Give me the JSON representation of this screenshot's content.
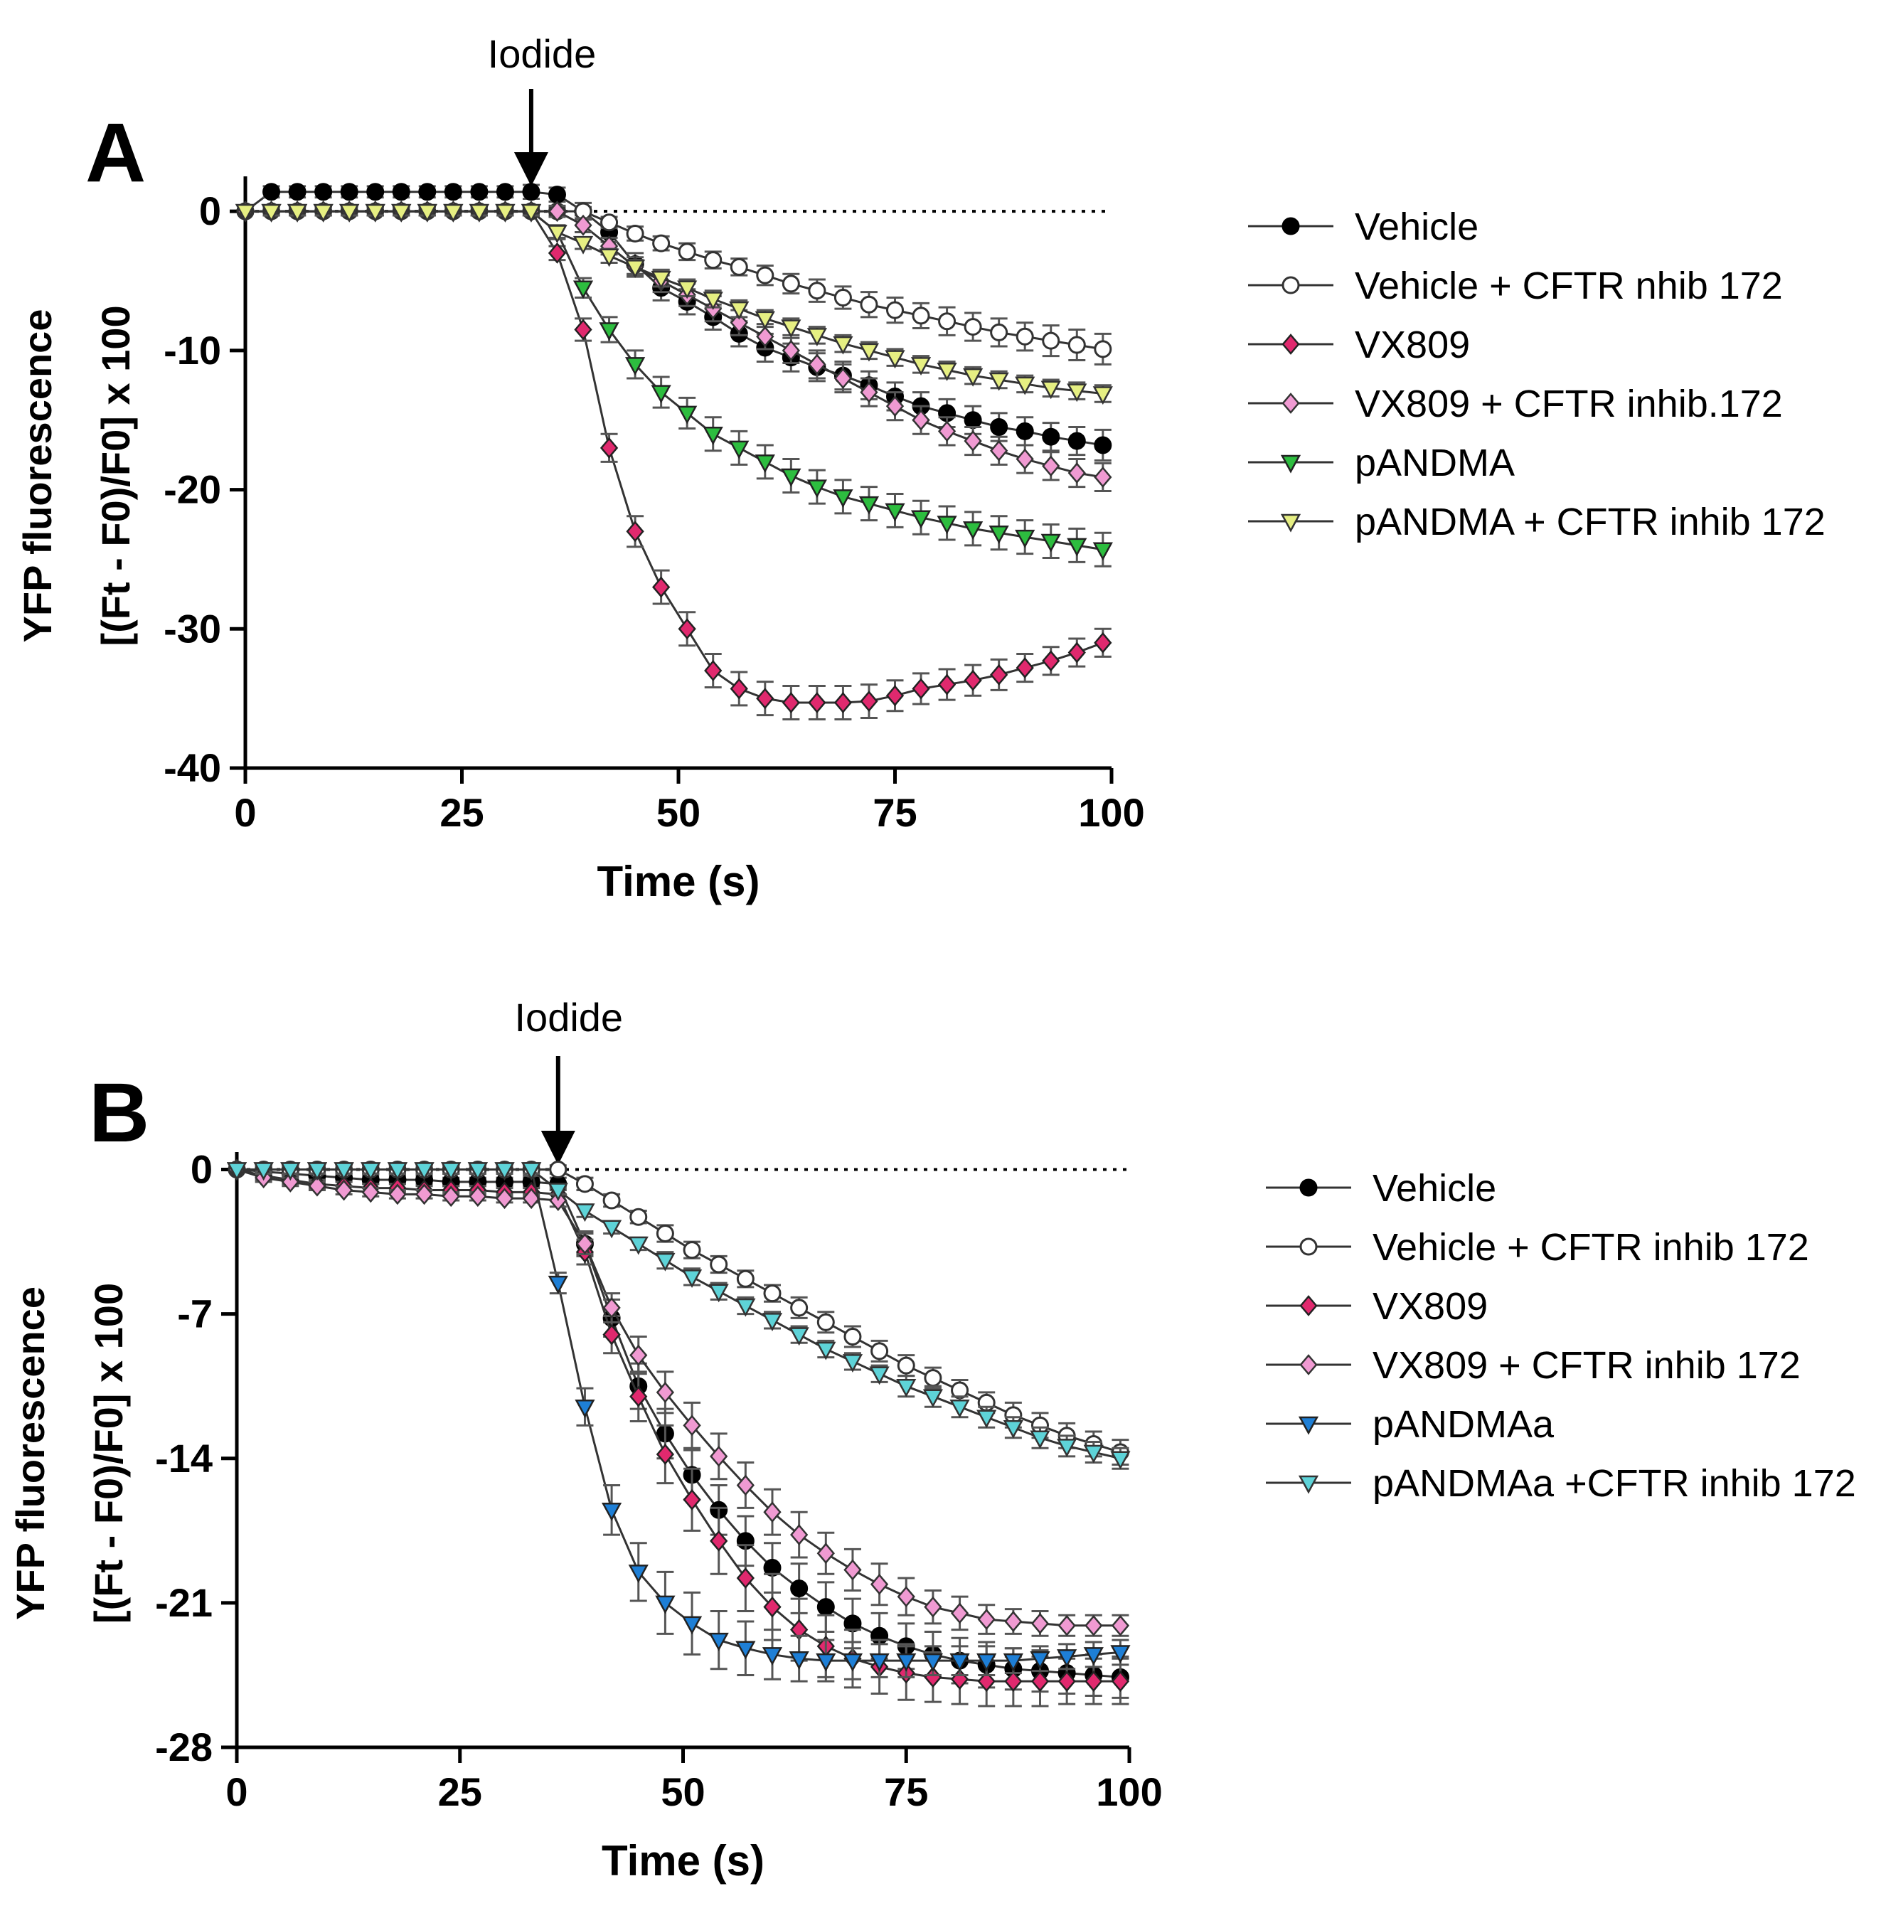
{
  "chart_data": [
    {
      "type": "line",
      "panel_label": "A",
      "annotation": "Iodide",
      "annotation_x": 33,
      "xlabel": "Time (s)",
      "ylabel_lines": [
        "YFP fluorescence",
        "[(Ft - F0)/F0] x 100"
      ],
      "xlim": [
        0,
        100
      ],
      "ylim": [
        -40,
        2
      ],
      "xticks": [
        0,
        25,
        50,
        75,
        100
      ],
      "xtick_labels": [
        "0",
        "25",
        "50",
        "75",
        "100"
      ],
      "yticks": [
        0,
        -10,
        -20,
        -30,
        -40
      ],
      "ytick_labels": [
        "0",
        "-10",
        "-20",
        "-30",
        "-40"
      ],
      "baseline": 0,
      "x": [
        0,
        3,
        6,
        9,
        12,
        15,
        18,
        21,
        24,
        27,
        30,
        33,
        36,
        39,
        42,
        45,
        48,
        51,
        54,
        57,
        60,
        63,
        66,
        69,
        72,
        75,
        78,
        81,
        84,
        87,
        90,
        93,
        96,
        99
      ],
      "legend": [
        "Vehicle",
        "Vehicle + CFTR nhib 172",
        "VX809",
        "VX809 + CFTR inhib.172",
        "pANDMA",
        "pANDMA + CFTR inhib 172"
      ],
      "series": [
        {
          "name": "Vehicle",
          "color": "#000000",
          "fill": "#000000",
          "marker": "circle",
          "values": [
            0,
            1.4,
            1.4,
            1.4,
            1.4,
            1.4,
            1.4,
            1.4,
            1.4,
            1.4,
            1.4,
            1.4,
            1.2,
            0,
            -1.5,
            -3.8,
            -5.5,
            -6.5,
            -7.6,
            -8.8,
            -9.8,
            -10.5,
            -11.2,
            -11.8,
            -12.5,
            -13.3,
            -14,
            -14.5,
            -15,
            -15.5,
            -15.8,
            -16.2,
            -16.5,
            -16.8
          ],
          "errors": [
            0,
            0.4,
            0.4,
            0.4,
            0.4,
            0.4,
            0.4,
            0.4,
            0.4,
            0.4,
            0.4,
            0.5,
            0.5,
            0.6,
            0.7,
            0.8,
            0.9,
            0.9,
            0.9,
            0.9,
            1,
            1,
            1,
            1,
            1,
            1,
            1,
            1,
            1,
            1,
            1,
            1,
            1,
            1.1
          ]
        },
        {
          "name": "Vehicle + CFTR nhib 172",
          "color": "#333333",
          "fill": "#ffffff",
          "marker": "circle",
          "values": [
            0,
            0,
            0,
            0,
            0,
            0,
            0,
            0,
            0,
            0,
            0,
            0,
            0,
            0,
            -0.8,
            -1.6,
            -2.3,
            -2.9,
            -3.5,
            -4,
            -4.6,
            -5.2,
            -5.7,
            -6.2,
            -6.7,
            -7.1,
            -7.5,
            -7.9,
            -8.3,
            -8.7,
            -9,
            -9.3,
            -9.6,
            -9.9
          ],
          "errors": [
            0,
            0.3,
            0.3,
            0.3,
            0.3,
            0.3,
            0.3,
            0.3,
            0.3,
            0.3,
            0.3,
            0.3,
            0.3,
            0.3,
            0.4,
            0.5,
            0.5,
            0.6,
            0.6,
            0.6,
            0.7,
            0.7,
            0.8,
            0.8,
            0.9,
            0.9,
            0.9,
            1,
            1,
            1,
            1,
            1.1,
            1.1,
            1.1
          ]
        },
        {
          "name": "VX809",
          "color": "#222222",
          "fill": "#e0296e",
          "marker": "diamond",
          "values": [
            0,
            0,
            0,
            0,
            0,
            0,
            0,
            0,
            0,
            0,
            0,
            0,
            -3,
            -8.5,
            -17,
            -23,
            -27,
            -30,
            -33,
            -34.3,
            -35,
            -35.3,
            -35.3,
            -35.3,
            -35.2,
            -34.8,
            -34.3,
            -34,
            -33.7,
            -33.3,
            -32.8,
            -32.3,
            -31.7,
            -31
          ],
          "errors": [
            0,
            0.3,
            0.3,
            0.3,
            0.3,
            0.3,
            0.3,
            0.3,
            0.3,
            0.3,
            0.3,
            0.3,
            0.5,
            0.8,
            1,
            1.1,
            1.2,
            1.2,
            1.2,
            1.2,
            1.2,
            1.2,
            1.2,
            1.2,
            1.2,
            1.1,
            1.1,
            1.1,
            1.1,
            1.1,
            1,
            1,
            1,
            1
          ]
        },
        {
          "name": "VX809 + CFTR inhib.172",
          "color": "#333333",
          "fill": "#f09ad2",
          "marker": "diamond",
          "values": [
            0,
            0,
            0,
            0,
            0,
            0,
            0,
            0,
            0,
            0,
            0,
            0,
            0,
            -1,
            -2.5,
            -4,
            -5,
            -6,
            -7,
            -8,
            -9,
            -10,
            -11,
            -12,
            -13,
            -14,
            -15,
            -15.8,
            -16.5,
            -17.2,
            -17.8,
            -18.3,
            -18.8,
            -19.1
          ],
          "errors": [
            0,
            0.3,
            0.3,
            0.3,
            0.3,
            0.3,
            0.3,
            0.3,
            0.3,
            0.3,
            0.3,
            0.3,
            0.4,
            0.5,
            0.6,
            0.7,
            0.8,
            0.8,
            0.9,
            0.9,
            0.9,
            0.9,
            1,
            1,
            1,
            1,
            1,
            1,
            1,
            1,
            1,
            1,
            1,
            1
          ]
        },
        {
          "name": "pANDMA",
          "color": "#222222",
          "fill": "#2dbd3f",
          "marker": "triangle-down",
          "values": [
            0,
            0,
            0,
            0,
            0,
            0,
            0,
            0,
            0,
            0,
            0,
            0,
            -1.5,
            -5.5,
            -8.5,
            -11,
            -13,
            -14.5,
            -16,
            -17,
            -18,
            -19,
            -19.8,
            -20.5,
            -21,
            -21.5,
            -22,
            -22.4,
            -22.8,
            -23.1,
            -23.4,
            -23.7,
            -24,
            -24.3
          ],
          "errors": [
            0,
            0.3,
            0.3,
            0.3,
            0.3,
            0.3,
            0.3,
            0.3,
            0.3,
            0.3,
            0.3,
            0.3,
            0.5,
            0.7,
            0.9,
            1,
            1.1,
            1.1,
            1.2,
            1.2,
            1.2,
            1.2,
            1.2,
            1.2,
            1.2,
            1.2,
            1.2,
            1.2,
            1.2,
            1.2,
            1.2,
            1.2,
            1.2,
            1.2
          ]
        },
        {
          "name": "pANDMA + CFTR inhib 172",
          "color": "#333333",
          "fill": "#e6ef82",
          "marker": "triangle-down",
          "values": [
            0,
            0,
            0,
            0,
            0,
            0,
            0,
            0,
            0,
            0,
            0,
            0,
            -1.5,
            -2.3,
            -3.2,
            -4,
            -4.8,
            -5.5,
            -6.3,
            -7,
            -7.7,
            -8.3,
            -8.9,
            -9.5,
            -10,
            -10.5,
            -11,
            -11.4,
            -11.8,
            -12.1,
            -12.4,
            -12.7,
            -12.9,
            -13.1
          ],
          "errors": [
            0,
            0.3,
            0.3,
            0.3,
            0.3,
            0.3,
            0.3,
            0.3,
            0.3,
            0.3,
            0.3,
            0.3,
            0.4,
            0.4,
            0.5,
            0.5,
            0.6,
            0.6,
            0.6,
            0.6,
            0.6,
            0.6,
            0.6,
            0.6,
            0.6,
            0.6,
            0.6,
            0.6,
            0.6,
            0.6,
            0.6,
            0.6,
            0.6,
            0.6
          ]
        }
      ]
    },
    {
      "type": "line",
      "panel_label": "B",
      "annotation": "Iodide",
      "annotation_x": 36,
      "xlabel": "Time (s)",
      "ylabel_lines": [
        "YFP fluorescence",
        "[(Ft - F0)/F0] x 100"
      ],
      "xlim": [
        0,
        100
      ],
      "ylim": [
        -28,
        0.5
      ],
      "xticks": [
        0,
        25,
        50,
        75,
        100
      ],
      "xtick_labels": [
        "0",
        "25",
        "50",
        "75",
        "100"
      ],
      "yticks": [
        0,
        -7,
        -14,
        -21,
        -28
      ],
      "ytick_labels": [
        "0",
        "-7",
        "-14",
        "-21",
        "-28"
      ],
      "baseline": 0,
      "x": [
        0,
        3,
        6,
        9,
        12,
        15,
        18,
        21,
        24,
        27,
        30,
        33,
        36,
        39,
        42,
        45,
        48,
        51,
        54,
        57,
        60,
        63,
        66,
        69,
        72,
        75,
        78,
        81,
        84,
        87,
        90,
        93,
        96,
        99
      ],
      "legend": [
        "Vehicle",
        "Vehicle + CFTR inhib 172",
        "VX809",
        "VX809 + CFTR inhib 172",
        "pANDMAa",
        "pANDMAa +CFTR inhib 172"
      ],
      "series": [
        {
          "name": "Vehicle",
          "color": "#000000",
          "fill": "#000000",
          "marker": "circle",
          "values": [
            0,
            -0.1,
            -0.2,
            -0.3,
            -0.4,
            -0.5,
            -0.5,
            -0.5,
            -0.6,
            -0.6,
            -0.6,
            -0.6,
            -0.7,
            -3.6,
            -7.2,
            -10.5,
            -12.8,
            -14.8,
            -16.5,
            -18,
            -19.3,
            -20.3,
            -21.2,
            -22,
            -22.6,
            -23.1,
            -23.5,
            -23.8,
            -24,
            -24.2,
            -24.3,
            -24.4,
            -24.5,
            -24.6
          ],
          "errors": [
            0,
            0.2,
            0.2,
            0.2,
            0.2,
            0.2,
            0.2,
            0.2,
            0.2,
            0.2,
            0.2,
            0.2,
            0.3,
            0.6,
            0.9,
            1.1,
            1.2,
            1.2,
            1.2,
            1.2,
            1.2,
            1.2,
            1.2,
            1.2,
            1.1,
            1.1,
            1.1,
            1.1,
            1.1,
            1,
            1,
            1,
            1,
            1
          ]
        },
        {
          "name": "Vehicle + CFTR inhib 172",
          "color": "#333333",
          "fill": "#ffffff",
          "marker": "circle",
          "values": [
            0,
            0,
            0,
            0,
            0,
            0,
            0,
            0,
            0,
            0,
            0,
            0,
            0,
            -0.7,
            -1.5,
            -2.3,
            -3.1,
            -3.9,
            -4.6,
            -5.3,
            -6,
            -6.7,
            -7.4,
            -8.1,
            -8.8,
            -9.5,
            -10.1,
            -10.7,
            -11.3,
            -11.9,
            -12.4,
            -12.9,
            -13.3,
            -13.7
          ],
          "errors": [
            0,
            0.2,
            0.2,
            0.2,
            0.2,
            0.2,
            0.2,
            0.2,
            0.2,
            0.2,
            0.2,
            0.2,
            0.2,
            0.3,
            0.3,
            0.3,
            0.4,
            0.4,
            0.4,
            0.4,
            0.4,
            0.5,
            0.5,
            0.5,
            0.5,
            0.5,
            0.5,
            0.5,
            0.5,
            0.6,
            0.6,
            0.6,
            0.6,
            0.6
          ]
        },
        {
          "name": "VX809",
          "color": "#222222",
          "fill": "#e0296e",
          "marker": "diamond",
          "values": [
            0,
            -0.3,
            -0.5,
            -0.7,
            -0.8,
            -0.9,
            -0.9,
            -1,
            -1,
            -1,
            -1.1,
            -1.1,
            -1.2,
            -4,
            -8,
            -11,
            -13.8,
            -16,
            -18,
            -19.8,
            -21.2,
            -22.3,
            -23.1,
            -23.7,
            -24.1,
            -24.4,
            -24.6,
            -24.7,
            -24.8,
            -24.8,
            -24.8,
            -24.8,
            -24.8,
            -24.8
          ],
          "errors": [
            0,
            0.2,
            0.2,
            0.2,
            0.2,
            0.2,
            0.2,
            0.2,
            0.2,
            0.2,
            0.2,
            0.2,
            0.3,
            0.6,
            0.9,
            1.2,
            1.4,
            1.5,
            1.6,
            1.6,
            1.6,
            1.5,
            1.5,
            1.4,
            1.3,
            1.3,
            1.2,
            1.2,
            1.2,
            1.2,
            1.2,
            1.1,
            1.1,
            1.1
          ]
        },
        {
          "name": "VX809 + CFTR inhib 172",
          "color": "#333333",
          "fill": "#f09ad2",
          "marker": "diamond",
          "values": [
            0,
            -0.4,
            -0.6,
            -0.8,
            -1,
            -1.1,
            -1.2,
            -1.2,
            -1.3,
            -1.3,
            -1.4,
            -1.4,
            -1.5,
            -3.6,
            -6.7,
            -9,
            -10.8,
            -12.4,
            -13.9,
            -15.3,
            -16.6,
            -17.7,
            -18.6,
            -19.4,
            -20.1,
            -20.7,
            -21.2,
            -21.5,
            -21.8,
            -21.9,
            -22,
            -22.1,
            -22.1,
            -22.1
          ],
          "errors": [
            0,
            0.2,
            0.2,
            0.2,
            0.2,
            0.2,
            0.2,
            0.2,
            0.2,
            0.2,
            0.2,
            0.2,
            0.3,
            0.5,
            0.7,
            0.9,
            1,
            1.1,
            1.1,
            1.1,
            1.1,
            1.1,
            1,
            1,
            1,
            0.9,
            0.8,
            0.8,
            0.7,
            0.6,
            0.6,
            0.5,
            0.5,
            0.5
          ]
        },
        {
          "name": "pANDMAa",
          "color": "#222222",
          "fill": "#1e7fd6",
          "marker": "triangle-down",
          "values": [
            0,
            0,
            0,
            0,
            0,
            0,
            0,
            0,
            0,
            0,
            0,
            0,
            -5.5,
            -11.5,
            -16.5,
            -19.5,
            -21,
            -22,
            -22.8,
            -23.2,
            -23.5,
            -23.7,
            -23.8,
            -23.8,
            -23.8,
            -23.8,
            -23.8,
            -23.8,
            -23.8,
            -23.8,
            -23.7,
            -23.6,
            -23.5,
            -23.4
          ],
          "errors": [
            0,
            0.2,
            0.2,
            0.2,
            0.2,
            0.2,
            0.2,
            0.2,
            0.2,
            0.2,
            0.2,
            0.3,
            0.5,
            0.9,
            1.2,
            1.4,
            1.5,
            1.5,
            1.4,
            1.3,
            1.2,
            1.1,
            1,
            0.9,
            0.8,
            0.8,
            0.7,
            0.7,
            0.7,
            0.6,
            0.6,
            0.6,
            0.6,
            0.6
          ]
        },
        {
          "name": "pANDMAa +CFTR inhib 172",
          "color": "#333333",
          "fill": "#5ed3d8",
          "marker": "triangle-down",
          "values": [
            0,
            0,
            0,
            0,
            0,
            0,
            0,
            0,
            0,
            0,
            0,
            0,
            -1,
            -2,
            -2.8,
            -3.6,
            -4.4,
            -5.2,
            -5.9,
            -6.6,
            -7.3,
            -8,
            -8.7,
            -9.3,
            -9.9,
            -10.5,
            -11,
            -11.5,
            -12,
            -12.5,
            -13,
            -13.4,
            -13.7,
            -14
          ],
          "errors": [
            0,
            0.2,
            0.2,
            0.2,
            0.2,
            0.2,
            0.2,
            0.2,
            0.2,
            0.2,
            0.2,
            0.2,
            0.2,
            0.3,
            0.3,
            0.3,
            0.4,
            0.4,
            0.4,
            0.4,
            0.4,
            0.4,
            0.4,
            0.4,
            0.4,
            0.5,
            0.5,
            0.5,
            0.5,
            0.5,
            0.5,
            0.5,
            0.5,
            0.5
          ]
        }
      ]
    }
  ]
}
